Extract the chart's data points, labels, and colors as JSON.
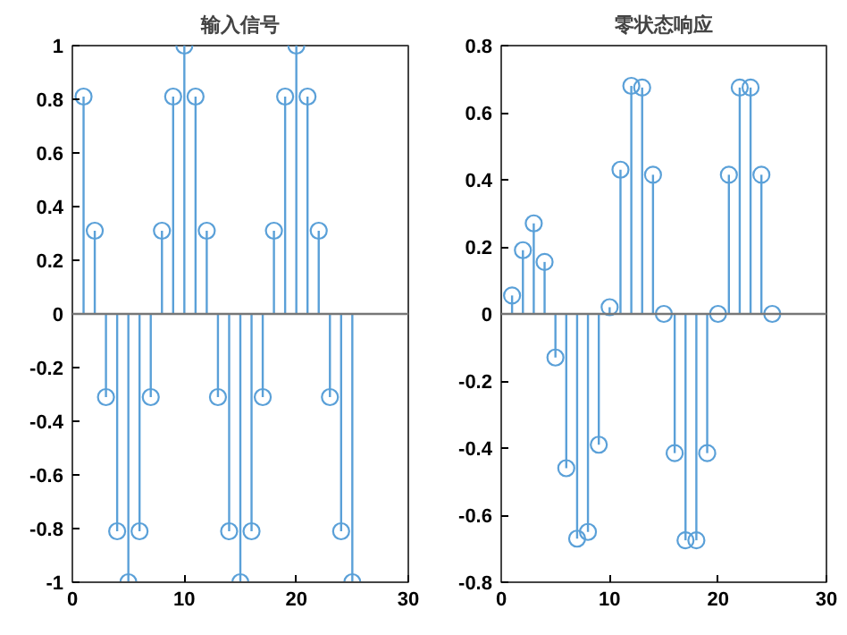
{
  "chart_data": [
    {
      "type": "lollipop",
      "title": "输入信号",
      "x": [
        1,
        2,
        3,
        4,
        5,
        6,
        7,
        8,
        9,
        10,
        11,
        12,
        13,
        14,
        15,
        16,
        17,
        18,
        19,
        20,
        21,
        22,
        23,
        24,
        25
      ],
      "series": [
        {
          "color": "#5aa0d8",
          "values": [
            0.81,
            0.31,
            -0.31,
            -0.81,
            -1,
            -0.81,
            -0.31,
            0.31,
            0.81,
            1,
            0.81,
            0.31,
            -0.31,
            -0.81,
            -1,
            -0.81,
            -0.31,
            0.31,
            0.81,
            1,
            0.81,
            0.31,
            -0.31,
            -0.81,
            -1
          ]
        }
      ],
      "xlim": [
        0,
        30
      ],
      "xticks": [
        0,
        10,
        20,
        30
      ],
      "ylim": [
        -1,
        1
      ],
      "yticks": [
        -1,
        -0.8,
        -0.6,
        -0.4,
        -0.2,
        0,
        0.2,
        0.4,
        0.6,
        0.8,
        1
      ],
      "marker": "circle"
    },
    {
      "type": "lollipop",
      "title": "零状态响应",
      "x": [
        1,
        2,
        3,
        4,
        5,
        6,
        7,
        8,
        9,
        10,
        11,
        12,
        13,
        14,
        15,
        16,
        17,
        18,
        19,
        20,
        21,
        22,
        23,
        24,
        25
      ],
      "series": [
        {
          "color": "#5aa0d8",
          "values": [
            0.055,
            0.19,
            0.27,
            0.155,
            -0.13,
            -0.46,
            -0.67,
            -0.65,
            -0.39,
            0.02,
            0.43,
            0.68,
            0.675,
            0.415,
            0,
            -0.415,
            -0.675,
            -0.675,
            -0.415,
            0,
            0.415,
            0.675,
            0.675,
            0.415,
            0
          ]
        }
      ],
      "xlim": [
        0,
        30
      ],
      "xticks": [
        0,
        10,
        20,
        30
      ],
      "ylim": [
        -0.8,
        0.8
      ],
      "yticks": [
        -0.8,
        -0.6,
        -0.4,
        -0.2,
        0,
        0.2,
        0.4,
        0.6,
        0.8
      ],
      "marker": "circle"
    }
  ]
}
